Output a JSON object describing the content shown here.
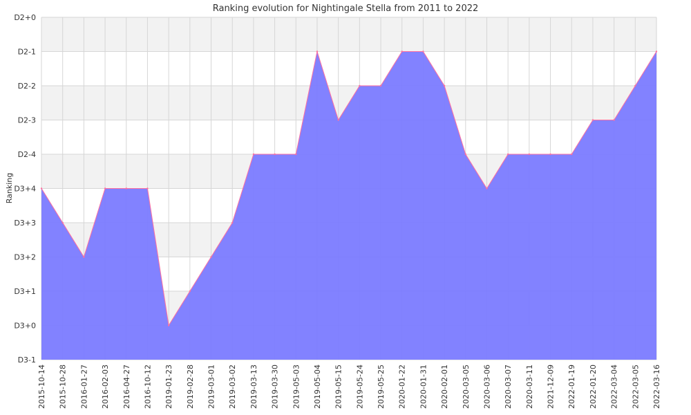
{
  "chart_data": {
    "type": "area",
    "title": "Ranking evolution for Nightingale Stella from 2011 to 2022",
    "xlabel": "",
    "ylabel": "Ranking",
    "y_tick_labels": [
      "D2+0",
      "D2-1",
      "D2-2",
      "D2-3",
      "D2-4",
      "D3+4",
      "D3+3",
      "D3+2",
      "D3+1",
      "D3+0",
      "D3-1"
    ],
    "ylim": [
      "D3-1",
      "D2+0"
    ],
    "categories": [
      "2015-10-14",
      "2015-10-28",
      "2016-01-27",
      "2016-02-03",
      "2016-04-27",
      "2016-10-12",
      "2019-01-23",
      "2019-02-28",
      "2019-03-01",
      "2019-03-02",
      "2019-03-13",
      "2019-03-30",
      "2019-05-03",
      "2019-05-04",
      "2019-05-15",
      "2019-05-24",
      "2019-05-25",
      "2020-01-22",
      "2020-01-31",
      "2020-02-01",
      "2020-03-05",
      "2020-03-06",
      "2020-03-07",
      "2020-03-11",
      "2021-12-09",
      "2022-01-19",
      "2022-01-20",
      "2022-03-04",
      "2022-03-05",
      "2022-03-16"
    ],
    "values": [
      "D3+4",
      "D3+3",
      "D3+2",
      "D3+4",
      "D3+4",
      "D3+4",
      "D3+0",
      "D3+1",
      "D3+2",
      "D3+3",
      "D2-4",
      "D2-4",
      "D2-4",
      "D2-1",
      "D2-3",
      "D2-2",
      "D2-2",
      "D2-1",
      "D2-1",
      "D2-2",
      "D2-4",
      "D3+4",
      "D2-4",
      "D2-4",
      "D2-4",
      "D2-4",
      "D2-3",
      "D2-3",
      "D2-2",
      "D2-1"
    ],
    "grid": true,
    "legend": "none",
    "colors": {
      "fill": "#7b7bff",
      "line": "#ff6f9f",
      "band": "#f2f2f2",
      "grid": "#d6d6d6"
    }
  }
}
